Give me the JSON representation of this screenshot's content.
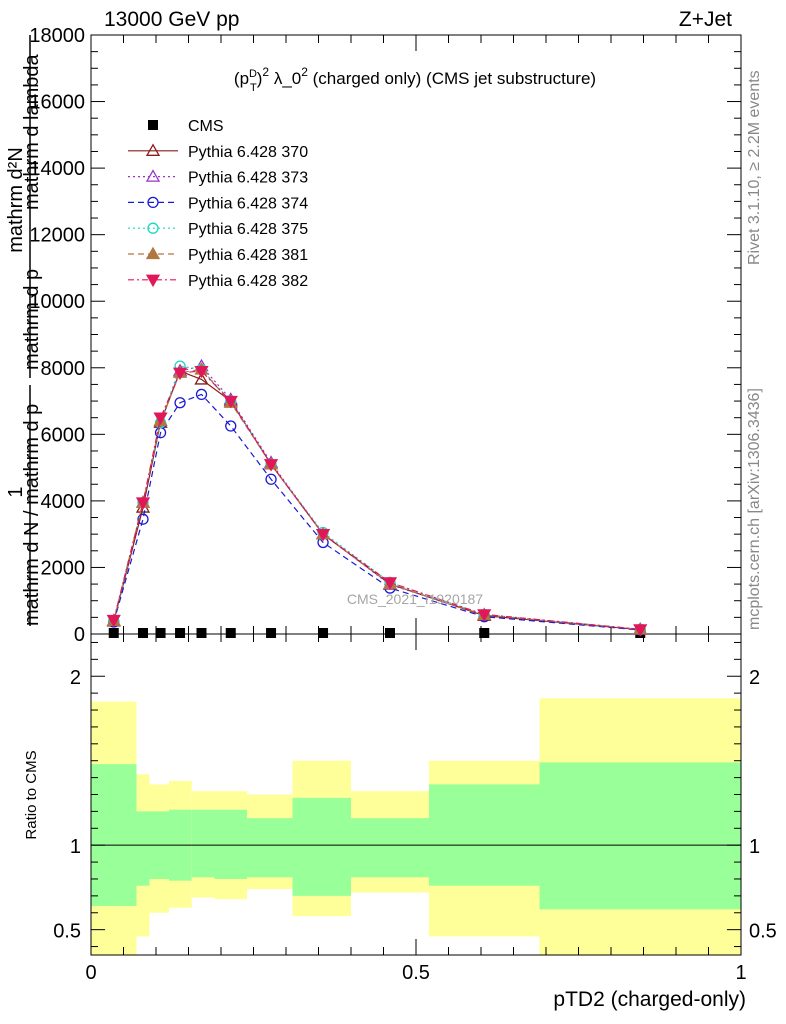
{
  "header": {
    "left": "13000 GeV pp",
    "right": "Z+Jet"
  },
  "side": {
    "rivet": "Rivet 3.1.10, ≥ 2.2M events",
    "mcplots": "mcplots.cern.ch [arXiv:1306.3436]"
  },
  "watermark": "CMS_2021_I1920187",
  "chart_data": [
    {
      "type": "line",
      "title": "(p_T^D)^2 λ_0^2 (charged only) (CMS jet substructure)",
      "ylabel": "mathrm d²N / mathrm d p_T mathrm d lambda · 1/mathrm d N / mathrm d p_T",
      "ylim": [
        0,
        18000
      ],
      "y_ticks": [
        0,
        2000,
        4000,
        6000,
        8000,
        10000,
        12000,
        14000,
        16000,
        18000
      ],
      "y_tick_labels": [
        "0",
        "2000",
        "4000",
        "6000",
        "8000",
        "10000",
        "12000",
        "14000",
        "16000",
        "18000"
      ],
      "xlim": [
        0,
        1
      ],
      "x": [
        0.035,
        0.08,
        0.107,
        0.137,
        0.17,
        0.215,
        0.277,
        0.357,
        0.46,
        0.605,
        0.845
      ],
      "series": [
        {
          "name": "CMS",
          "color": "#000000",
          "marker": "square",
          "values": [
            30,
            30,
            30,
            30,
            30,
            30,
            30,
            30,
            30,
            30,
            30
          ]
        },
        {
          "name": "Pythia 6.428 370",
          "color": "#8b1a1a",
          "marker": "open-triangle-up",
          "dash": "solid",
          "values": [
            380,
            3800,
            6350,
            7900,
            7650,
            7000,
            5100,
            3000,
            1500,
            550,
            130
          ]
        },
        {
          "name": "Pythia 6.428 373",
          "color": "#9932cc",
          "marker": "open-triangle-up",
          "dash": "dotted",
          "values": [
            400,
            3950,
            6400,
            7900,
            8050,
            7050,
            5150,
            3000,
            1480,
            580,
            140
          ]
        },
        {
          "name": "Pythia 6.428 374",
          "color": "#1a1ad6",
          "marker": "open-circle",
          "dash": "dashed",
          "values": [
            360,
            3450,
            6050,
            6950,
            7200,
            6250,
            4650,
            2750,
            1380,
            520,
            120
          ]
        },
        {
          "name": "Pythia 6.428 375",
          "color": "#1ad6c8",
          "marker": "open-circle",
          "dash": "dotted",
          "values": [
            400,
            3950,
            6350,
            8050,
            7950,
            7000,
            5100,
            3050,
            1550,
            580,
            140
          ]
        },
        {
          "name": "Pythia 6.428 381",
          "color": "#b07840",
          "marker": "filled-triangle-up",
          "dash": "dashed",
          "values": [
            400,
            3950,
            6400,
            7850,
            7950,
            6950,
            5100,
            3000,
            1500,
            570,
            140
          ]
        },
        {
          "name": "Pythia 6.428 382",
          "color": "#e0185a",
          "marker": "filled-triangle-down",
          "dash": "dashdot",
          "values": [
            420,
            3950,
            6500,
            7850,
            7900,
            7000,
            5100,
            3000,
            1550,
            590,
            140
          ]
        }
      ]
    },
    {
      "type": "area",
      "xlabel": "pTD2 (charged-only)",
      "ylabel": "Ratio to CMS",
      "xlim": [
        0,
        1
      ],
      "ylim": [
        0.35,
        2.25
      ],
      "x_ticks": [
        0,
        0.5,
        1
      ],
      "x_tick_labels": [
        "0",
        "0.5",
        "1"
      ],
      "y_ticks": [
        0.5,
        1,
        2
      ],
      "y_tick_labels": [
        "0.5",
        "1",
        "2"
      ],
      "reference_line": 1,
      "bin_edges": [
        0,
        0.07,
        0.09,
        0.12,
        0.155,
        0.19,
        0.24,
        0.31,
        0.4,
        0.52,
        0.69,
        1.0
      ],
      "band_inner_low": [
        0.64,
        0.76,
        0.8,
        0.79,
        0.81,
        0.8,
        0.81,
        0.7,
        0.81,
        0.76,
        0.62
      ],
      "band_inner_high": [
        1.48,
        1.2,
        1.2,
        1.21,
        1.21,
        1.21,
        1.16,
        1.28,
        1.16,
        1.36,
        1.49
      ],
      "band_outer_low": [
        0.35,
        0.46,
        0.6,
        0.63,
        0.69,
        0.68,
        0.74,
        0.58,
        0.72,
        0.46,
        0.35
      ],
      "band_outer_high": [
        1.85,
        1.42,
        1.36,
        1.38,
        1.32,
        1.32,
        1.3,
        1.5,
        1.32,
        1.5,
        1.87
      ],
      "colors": {
        "inner": "#99ff99",
        "outer": "#ffff99"
      }
    }
  ]
}
